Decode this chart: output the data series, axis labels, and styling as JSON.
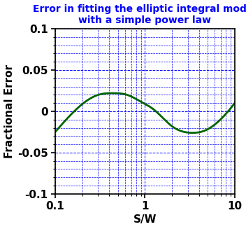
{
  "title_line1": "Error in fitting the elliptic integral model",
  "title_line2": "with a simple power law",
  "xlabel": "S/W",
  "ylabel": "Fractional Error",
  "xlim": [
    0.1,
    10
  ],
  "ylim": [
    -0.1,
    0.1
  ],
  "yticks": [
    -0.1,
    -0.05,
    0,
    0.05,
    0.1
  ],
  "xticks": [
    0.1,
    1,
    10
  ],
  "background_color": "#ffffff",
  "plot_bg_color": "#ffffff",
  "grid_color": "#0000ff",
  "line_color": "#006400",
  "title_color": "#0000ff",
  "axis_color": "#000000",
  "line_width": 2.0,
  "title_fontsize": 10,
  "label_fontsize": 11,
  "tick_fontsize": 11,
  "control_lx": [
    -1.0,
    -0.75,
    -0.52,
    -0.35,
    -0.2,
    -0.05,
    0.1,
    0.3,
    0.52,
    0.65,
    0.8,
    1.0
  ],
  "control_y": [
    -0.025,
    0.004,
    0.02,
    0.022,
    0.02,
    0.012,
    0.002,
    -0.018,
    -0.026,
    -0.024,
    -0.014,
    0.01
  ]
}
